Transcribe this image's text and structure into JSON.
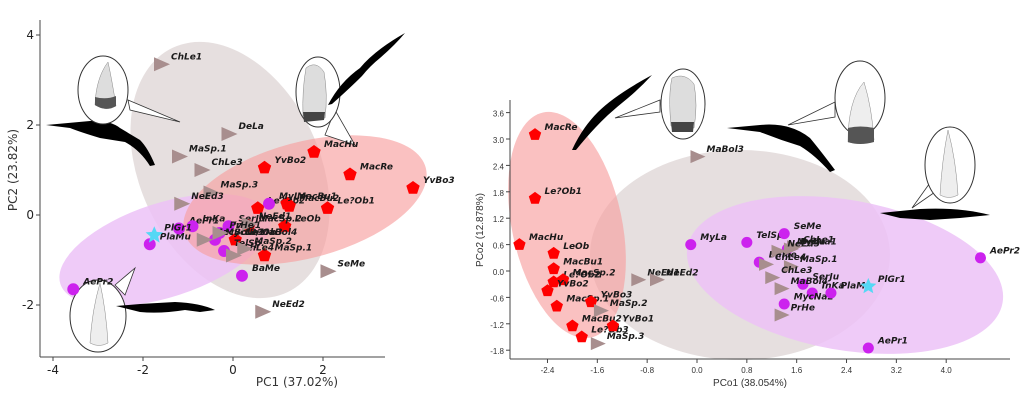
{
  "colors": {
    "red_group": "#ff0000",
    "purple_group": "#cc22ee",
    "grey_group": "#a88e8e",
    "star": "#55d8f5",
    "red_ellipse": "#f7a0a0",
    "purple_ellipse": "#ecc2f7",
    "grey_ellipse": "#e3dcdc"
  },
  "chart_data": [
    {
      "type": "scatter",
      "title": "",
      "xlabel": "PC1 (37.02%)",
      "ylabel": "PC2 (23.82%)",
      "xlim": [
        -4.3,
        3.7
      ],
      "ylim": [
        -3.4,
        4.4
      ],
      "xticks": [
        "-4",
        "-2",
        "0",
        "2"
      ],
      "yticks": [
        "4",
        "2",
        "0",
        "-2"
      ],
      "grid": false,
      "series": [
        {
          "name": "red-pentagon",
          "marker": "pentagon",
          "points": [
            {
              "label": "MacHu",
              "x": 1.8,
              "y": 1.4
            },
            {
              "label": "MacRe",
              "x": 2.6,
              "y": 0.9
            },
            {
              "label": "YvBo3",
              "x": 4.0,
              "y": 0.6
            },
            {
              "label": "YvBo2",
              "x": 0.7,
              "y": 1.05
            },
            {
              "label": "Le?Ob2",
              "x": 0.55,
              "y": 0.15
            },
            {
              "label": "MacBu1",
              "x": 1.2,
              "y": 0.25
            },
            {
              "label": "MacBu2",
              "x": 1.25,
              "y": 0.2
            },
            {
              "label": "Le?Ob1",
              "x": 2.1,
              "y": 0.15
            },
            {
              "label": "LeOb",
              "x": 1.15,
              "y": -0.25
            },
            {
              "label": "MacSp.2",
              "x": 0.35,
              "y": -0.25
            },
            {
              "label": "Le?Ob3",
              "x": 0.05,
              "y": -0.55
            },
            {
              "label": "MaSp.1",
              "x": 0.7,
              "y": -0.9
            }
          ]
        },
        {
          "name": "purple-circle",
          "marker": "circle",
          "points": [
            {
              "label": "AePr2",
              "x": -3.55,
              "y": -1.65
            },
            {
              "label": "PlaMu",
              "x": -1.85,
              "y": -0.65
            },
            {
              "label": "AePr1",
              "x": -1.2,
              "y": -0.3
            },
            {
              "label": "InKa",
              "x": -0.9,
              "y": -0.25
            },
            {
              "label": "YvBo1",
              "x": -0.3,
              "y": -0.4
            },
            {
              "label": "SerJu",
              "x": -0.1,
              "y": -0.25
            },
            {
              "label": "TelSp.",
              "x": -0.2,
              "y": -0.8
            },
            {
              "label": "MycNa1",
              "x": -0.4,
              "y": -0.55
            },
            {
              "label": "MyLa",
              "x": 0.8,
              "y": 0.25
            },
            {
              "label": "BaMe",
              "x": 0.2,
              "y": -1.35
            }
          ]
        },
        {
          "name": "grey-triangle",
          "marker": "triangle",
          "points": [
            {
              "label": "ChLe1",
              "x": -1.6,
              "y": 3.35
            },
            {
              "label": "DeLa",
              "x": -0.1,
              "y": 1.8
            },
            {
              "label": "MaSp.1",
              "x": -1.2,
              "y": 1.3
            },
            {
              "label": "ChLe3",
              "x": -0.7,
              "y": 1.0
            },
            {
              "label": "MaSp.3",
              "x": -0.5,
              "y": 0.5
            },
            {
              "label": "NeEd3",
              "x": -1.15,
              "y": 0.25
            },
            {
              "label": "MacBol3/MaBol4",
              "x": -0.65,
              "y": -0.55
            },
            {
              "label": "NeEd1",
              "x": 0.35,
              "y": -0.2
            },
            {
              "label": "PrHe",
              "x": -0.3,
              "y": -0.4
            },
            {
              "label": "ChLe4",
              "x": 0.0,
              "y": -0.9
            },
            {
              "label": "MaSp.2",
              "x": 0.25,
              "y": -0.75
            },
            {
              "label": "SeMe",
              "x": 2.1,
              "y": -1.25
            },
            {
              "label": "NeEd2",
              "x": 0.65,
              "y": -2.15
            }
          ]
        },
        {
          "name": "star",
          "marker": "star",
          "points": [
            {
              "label": "PlGr1",
              "x": -1.75,
              "y": -0.45
            }
          ]
        }
      ]
    },
    {
      "type": "scatter",
      "title": "",
      "xlabel": "PCo1 (38.054%)",
      "ylabel": "PCo2 (12.878%)",
      "xlim": [
        -2.9,
        4.8
      ],
      "ylim": [
        -2.0,
        3.9
      ],
      "xticks": [
        "-2.4",
        "-1.6",
        "-0.8",
        "0.0",
        "0.8",
        "1.6",
        "2.4",
        "3.2",
        "4.0"
      ],
      "yticks": [
        "3.6",
        "3.0",
        "2.4",
        "1.8",
        "1.2",
        "0.6",
        "0.0",
        "-0.6",
        "-1.2",
        "-1.8"
      ],
      "grid": false,
      "series": [
        {
          "name": "red-pentagon",
          "marker": "pentagon",
          "points": [
            {
              "label": "MacRe",
              "x": -2.6,
              "y": 3.1
            },
            {
              "label": "Le?Ob1",
              "x": -2.6,
              "y": 1.65
            },
            {
              "label": "MacHu",
              "x": -2.85,
              "y": 0.6
            },
            {
              "label": "LeOb",
              "x": -2.3,
              "y": 0.4
            },
            {
              "label": "MacBu1",
              "x": -2.3,
              "y": 0.05
            },
            {
              "label": "Le?Ob2",
              "x": -2.3,
              "y": -0.25
            },
            {
              "label": "MacSp.2",
              "x": -2.15,
              "y": -0.2
            },
            {
              "label": "YvBo2",
              "x": -2.4,
              "y": -0.45
            },
            {
              "label": "MacSp.1",
              "x": -2.25,
              "y": -0.8
            },
            {
              "label": "YvBo3",
              "x": -1.7,
              "y": -0.7
            },
            {
              "label": "MacBu2",
              "x": -2.0,
              "y": -1.25
            },
            {
              "label": "Le?Ob3",
              "x": -1.85,
              "y": -1.5
            },
            {
              "label": "YvBo1",
              "x": -1.35,
              "y": -1.25
            }
          ]
        },
        {
          "name": "purple-circle",
          "marker": "circle",
          "points": [
            {
              "label": "MyLa",
              "x": -0.1,
              "y": 0.6
            },
            {
              "label": "TelSp.",
              "x": 0.8,
              "y": 0.65
            },
            {
              "label": "SeMe",
              "x": 1.4,
              "y": 0.85
            },
            {
              "label": "MycNa1",
              "x": 1.45,
              "y": 0.5
            },
            {
              "label": "BaMe",
              "x": 1.0,
              "y": 0.2
            },
            {
              "label": "SerJu",
              "x": 1.7,
              "y": -0.3
            },
            {
              "label": "InKa",
              "x": 1.85,
              "y": -0.5
            },
            {
              "label": "MycNa2",
              "x": 1.4,
              "y": -0.75
            },
            {
              "label": "PlaMu",
              "x": 2.15,
              "y": -0.5
            },
            {
              "label": "AePr2",
              "x": 4.55,
              "y": 0.3
            },
            {
              "label": "AePr1",
              "x": 2.75,
              "y": -1.75
            }
          ]
        },
        {
          "name": "grey-triangle",
          "marker": "triangle",
          "points": [
            {
              "label": "MaBol3",
              "x": 0.0,
              "y": 2.6
            },
            {
              "label": "ChLe1",
              "x": 1.55,
              "y": 0.55
            },
            {
              "label": "DeLa",
              "x": 1.5,
              "y": 0.5
            },
            {
              "label": "NeEd3",
              "x": 1.3,
              "y": 0.45
            },
            {
              "label": "ChLe4",
              "x": 1.1,
              "y": 0.15
            },
            {
              "label": "MaSp.1",
              "x": 1.5,
              "y": 0.1
            },
            {
              "label": "ChLe3",
              "x": 1.2,
              "y": -0.15
            },
            {
              "label": "MaBol4",
              "x": 1.35,
              "y": -0.4
            },
            {
              "label": "PrHe",
              "x": 1.35,
              "y": -1.0
            },
            {
              "label": "NeEd1",
              "x": -0.95,
              "y": -0.2
            },
            {
              "label": "NeEd2",
              "x": -0.65,
              "y": -0.2
            },
            {
              "label": "MaSp.2",
              "x": -1.55,
              "y": -0.9
            },
            {
              "label": "MaSp.3",
              "x": -1.6,
              "y": -1.65
            }
          ]
        },
        {
          "name": "star",
          "marker": "star",
          "points": [
            {
              "label": "PlGr1",
              "x": 2.75,
              "y": -0.35
            }
          ]
        }
      ]
    }
  ]
}
